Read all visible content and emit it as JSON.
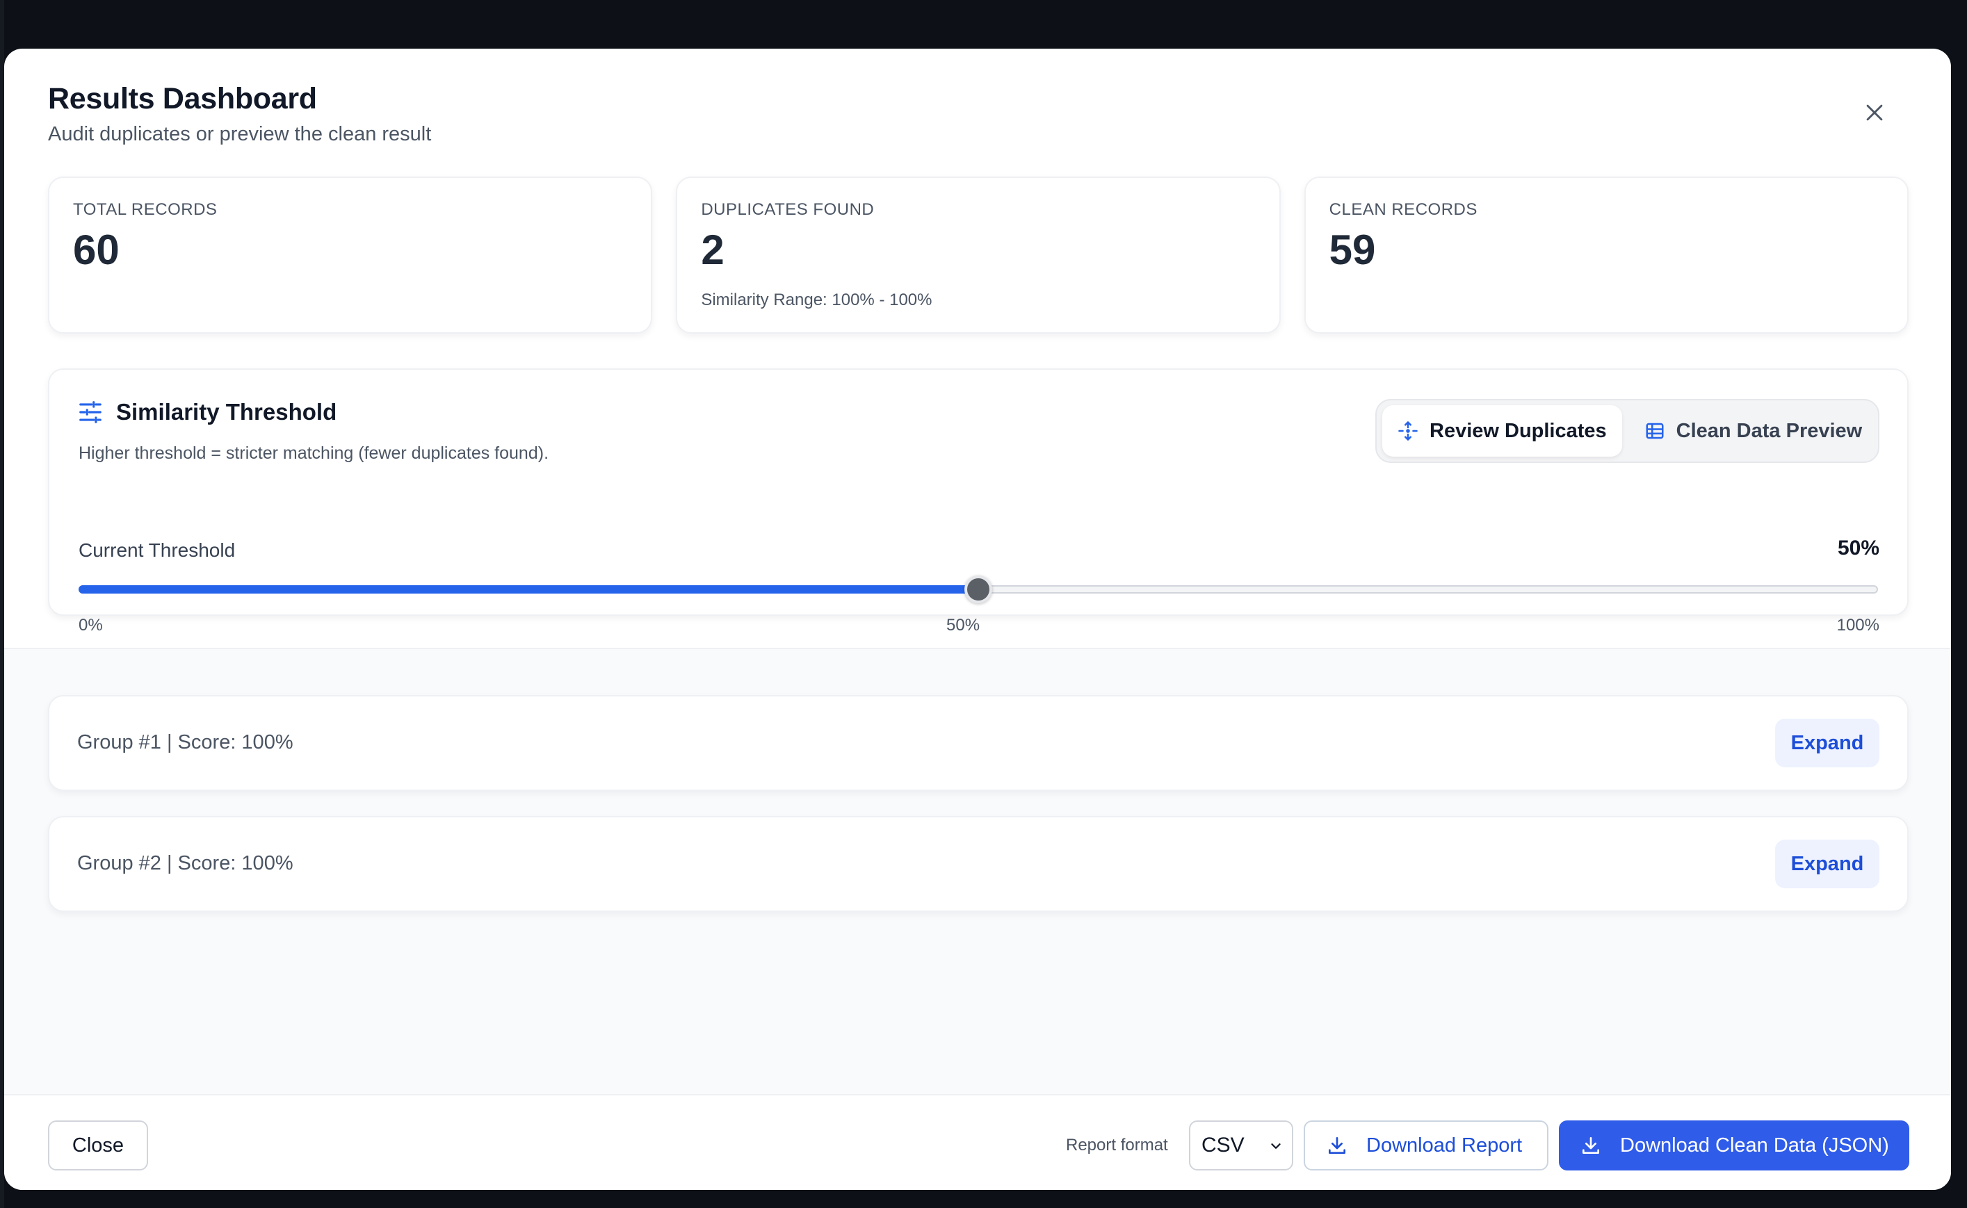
{
  "modal": {
    "title": "Results Dashboard",
    "subtitle": "Audit duplicates or preview the clean result"
  },
  "stats": [
    {
      "label": "TOTAL RECORDS",
      "value": "60",
      "sub": ""
    },
    {
      "label": "DUPLICATES FOUND",
      "value": "2",
      "sub": "Similarity Range: 100% - 100%"
    },
    {
      "label": "CLEAN RECORDS",
      "value": "59",
      "sub": ""
    }
  ],
  "threshold": {
    "title": "Similarity Threshold",
    "description": "Higher threshold = stricter matching (fewer duplicates found).",
    "current_label": "Current Threshold",
    "current_value": "50%",
    "value_fraction": 0.5,
    "ticks": {
      "min": "0%",
      "mid": "50%",
      "max": "100%"
    }
  },
  "view_toggle": {
    "review": "Review Duplicates",
    "preview": "Clean Data Preview",
    "active": "review"
  },
  "groups": [
    {
      "label": "Group #1 | Score: 100%",
      "action": "Expand"
    },
    {
      "label": "Group #2 | Score: 100%",
      "action": "Expand"
    }
  ],
  "footer": {
    "close": "Close",
    "format_label": "Report format",
    "format_value": "CSV",
    "download_report": "Download Report",
    "download_clean": "Download Clean Data (JSON)"
  },
  "colors": {
    "accent": "#2563eb",
    "primary_button": "#2f5ce9",
    "expand_bg": "#eef2ff"
  },
  "icons": {
    "close": "close-icon",
    "threshold": "sliders-icon",
    "review": "move-arrows-icon",
    "preview": "table-icon",
    "download": "download-icon",
    "select": "chevron-down-icon"
  }
}
